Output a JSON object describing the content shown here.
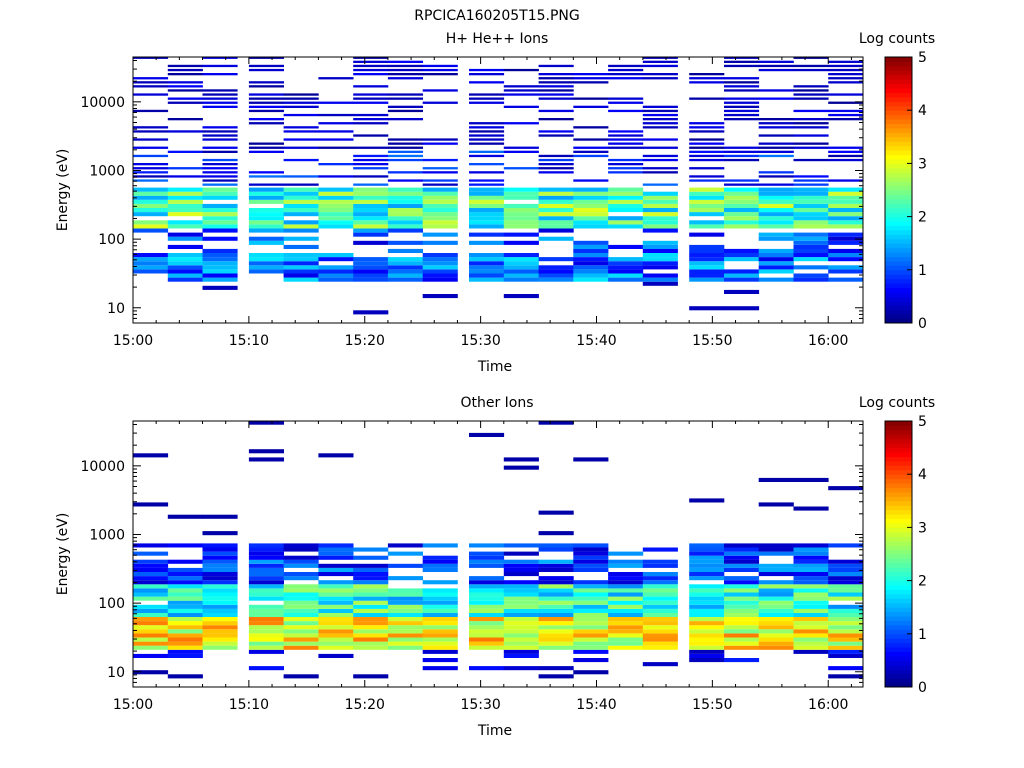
{
  "figure_title": "RPCICA160205T15.PNG",
  "colorbar": {
    "label": "Log counts",
    "range": [
      0,
      5
    ],
    "ticks": [
      "0",
      "1",
      "2",
      "3",
      "4",
      "5"
    ]
  },
  "chart_data": [
    {
      "type": "heatmap",
      "title": "H+ He++ Ions",
      "xlabel": "Time",
      "ylabel": "Energy (eV)",
      "yscale": "log",
      "ylim": [
        6,
        45000
      ],
      "xlim": [
        "15:00",
        "16:03"
      ],
      "xticks": [
        "15:00",
        "15:10",
        "15:20",
        "15:30",
        "15:40",
        "15:50",
        "16:00"
      ],
      "yticks": [
        "10",
        "100",
        "1000",
        "10000"
      ],
      "time_columns_start": [
        "15:00",
        "15:03",
        "15:06",
        "15:10",
        "15:13",
        "15:16",
        "15:19",
        "15:22",
        "15:25",
        "15:29",
        "15:32",
        "15:35",
        "15:38",
        "15:41",
        "15:44",
        "15:48",
        "15:51",
        "15:54",
        "15:57",
        "16:00"
      ],
      "energy_bins_eV": [
        10,
        16,
        25,
        40,
        63,
        100,
        160,
        250,
        400,
        630,
        1000,
        1600,
        2500,
        4000,
        6300,
        10000,
        16000,
        25000,
        40000
      ],
      "grid": false
    },
    {
      "type": "heatmap",
      "title": "Other Ions",
      "xlabel": "Time",
      "ylabel": "Energy (eV)",
      "yscale": "log",
      "ylim": [
        6,
        45000
      ],
      "xlim": [
        "15:00",
        "16:03"
      ],
      "xticks": [
        "15:00",
        "15:10",
        "15:20",
        "15:30",
        "15:40",
        "15:50",
        "16:00"
      ],
      "yticks": [
        "10",
        "100",
        "1000",
        "10000"
      ],
      "time_columns_start": [
        "15:00",
        "15:03",
        "15:06",
        "15:10",
        "15:13",
        "15:16",
        "15:19",
        "15:22",
        "15:25",
        "15:29",
        "15:32",
        "15:35",
        "15:38",
        "15:41",
        "15:44",
        "15:48",
        "15:51",
        "15:54",
        "15:57",
        "16:00"
      ],
      "energy_bins_eV": [
        10,
        16,
        25,
        40,
        63,
        100,
        160,
        250,
        400,
        630,
        1000,
        1600,
        2500,
        4000,
        6300,
        10000,
        16000,
        25000,
        40000
      ],
      "grid": false
    }
  ]
}
